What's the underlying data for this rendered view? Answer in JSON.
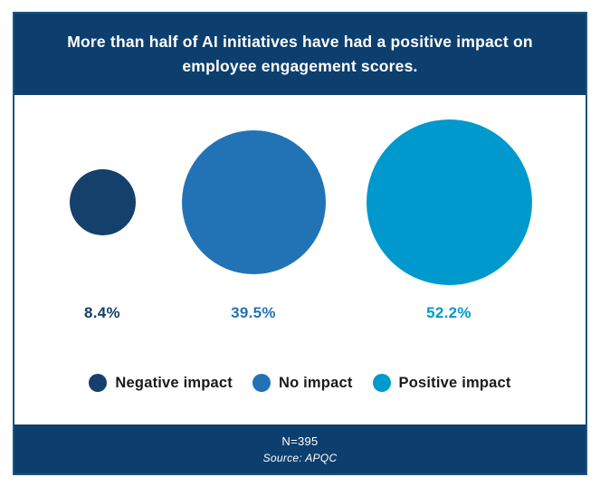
{
  "header": {
    "title": "More than half of AI initiatives have had a positive impact on employee engagement scores."
  },
  "footer": {
    "n_label": "N=395",
    "source_label": "Source: APQC"
  },
  "colors": {
    "header_background": "#0d3f6e",
    "footer_background": "#0d3f6e",
    "border": "#1c5380",
    "legend_text": "#1a1a1a",
    "title_text": "#ffffff"
  },
  "chart_data": {
    "type": "bubble",
    "title": "More than half of AI initiatives have had a positive impact on employee engagement scores.",
    "categories": [
      "Negative impact",
      "No impact",
      "Positive impact"
    ],
    "values": [
      8.4,
      39.5,
      52.2
    ],
    "value_labels": [
      "8.4%",
      "39.5%",
      "52.2%"
    ],
    "colors": [
      "#15406b",
      "#2273b5",
      "#0099cd"
    ],
    "unit": "%",
    "sizing": "area-proportional",
    "legend_position": "bottom",
    "n_label": "N=395",
    "source": "Source: APQC"
  }
}
